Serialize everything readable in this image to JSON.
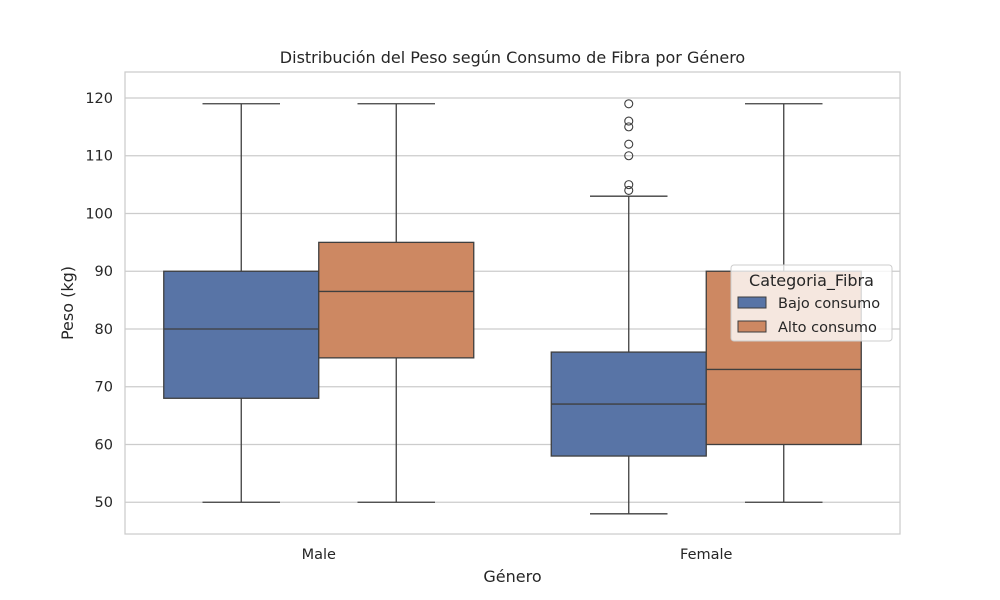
{
  "chart_data": {
    "type": "boxplot",
    "title": "Distribución del Peso según Consumo de Fibra por Género",
    "xlabel": "Género",
    "ylabel": "Peso (kg)",
    "ylim": [
      44.5,
      124.5
    ],
    "yticks": [
      50,
      60,
      70,
      80,
      90,
      100,
      110,
      120
    ],
    "grid": true,
    "categories": [
      "Male",
      "Female"
    ],
    "legend": {
      "title": "Categoria_Fibra",
      "position": "center-right"
    },
    "series": [
      {
        "name": "Bajo consumo",
        "color": "#5874a6",
        "boxes": [
          {
            "whisker_low": 50,
            "q1": 68,
            "median": 80,
            "q3": 90,
            "whisker_high": 119,
            "outliers": []
          },
          {
            "whisker_low": 48,
            "q1": 58,
            "median": 67,
            "q3": 76,
            "whisker_high": 103,
            "outliers": [
              104,
              105,
              110,
              112,
              115,
              116,
              119
            ]
          }
        ]
      },
      {
        "name": "Alto consumo",
        "color": "#cd8862",
        "boxes": [
          {
            "whisker_low": 50,
            "q1": 75,
            "median": 86.5,
            "q3": 95,
            "whisker_high": 119,
            "outliers": []
          },
          {
            "whisker_low": 50,
            "q1": 60,
            "median": 73,
            "q3": 90,
            "whisker_high": 119,
            "outliers": []
          }
        ]
      }
    ]
  }
}
